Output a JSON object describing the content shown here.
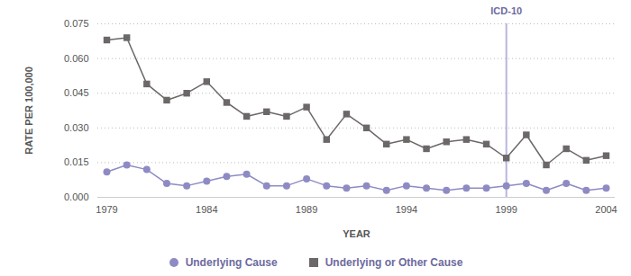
{
  "chart_data": {
    "type": "line",
    "x_label": "YEAR",
    "y_label": "RATE PER 100,000",
    "x": [
      1979,
      1980,
      1981,
      1982,
      1983,
      1984,
      1985,
      1986,
      1987,
      1988,
      1989,
      1990,
      1991,
      1992,
      1993,
      1994,
      1995,
      1996,
      1997,
      1998,
      1999,
      2000,
      2001,
      2002,
      2003,
      2004
    ],
    "series": [
      {
        "name": "Underlying Cause",
        "color": "#8e8bc4",
        "marker": "circle",
        "values": [
          0.011,
          0.014,
          0.012,
          0.006,
          0.005,
          0.007,
          0.009,
          0.01,
          0.005,
          0.005,
          0.008,
          0.005,
          0.004,
          0.005,
          0.003,
          0.005,
          0.004,
          0.003,
          0.004,
          0.004,
          0.005,
          0.006,
          0.003,
          0.006,
          0.003,
          0.004
        ]
      },
      {
        "name": "Underlying or Other Cause",
        "color": "#6d6868",
        "marker": "square",
        "values": [
          0.068,
          0.069,
          0.049,
          0.042,
          0.045,
          0.05,
          0.041,
          0.035,
          0.037,
          0.035,
          0.039,
          0.025,
          0.036,
          0.03,
          0.023,
          0.025,
          0.021,
          0.024,
          0.025,
          0.023,
          0.017,
          0.027,
          0.014,
          0.021,
          0.016,
          0.018
        ]
      }
    ],
    "xlim": [
      1979,
      2004
    ],
    "xticks": [
      1979,
      1984,
      1989,
      1994,
      1999,
      2004
    ],
    "ylim": [
      0,
      0.075
    ],
    "yticks": [
      {
        "value": 0,
        "label": "0.000"
      },
      0.015,
      {
        "value": 0.03,
        "label": "0.030"
      },
      0.045,
      {
        "value": 0.06,
        "label": "0.060"
      },
      0.075
    ],
    "grid": true,
    "legend": "bottom",
    "annotations": [
      {
        "x": 1999,
        "label": "ICD-10",
        "color": "#b9b4dc"
      }
    ]
  }
}
